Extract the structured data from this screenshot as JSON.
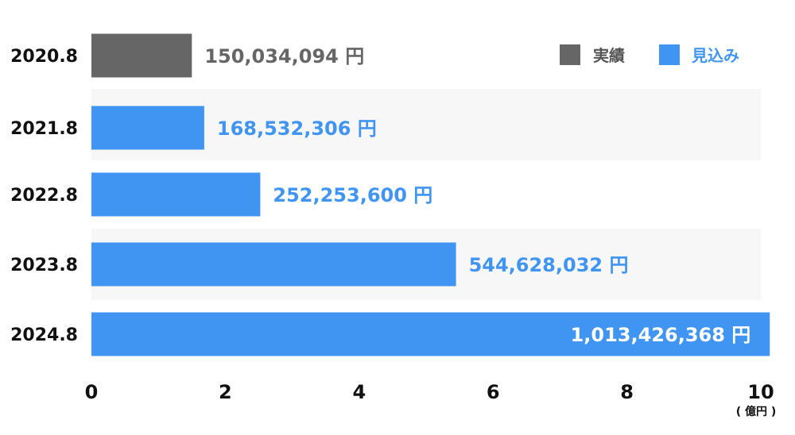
{
  "chart_data": {
    "type": "bar",
    "orientation": "horizontal",
    "categories": [
      "2020.8",
      "2021.8",
      "2022.8",
      "2023.8",
      "2024.8"
    ],
    "values": [
      1.50034094,
      1.68532306,
      2.522536,
      5.44628032,
      10.13426368
    ],
    "value_labels": [
      "150,034,094 円",
      "168,532,306 円",
      "252,253,600 円",
      "544,628,032 円",
      "1,013,426,368 円"
    ],
    "bar_kind": [
      "実績",
      "見込み",
      "見込み",
      "見込み",
      "見込み"
    ],
    "xlim": [
      0,
      10
    ],
    "xticks": [
      "0",
      "2",
      "4",
      "6",
      "8",
      "10"
    ],
    "x_unit": "( 億円 )",
    "legend": [
      {
        "label": "実績",
        "color": "#666666"
      },
      {
        "label": "見込み",
        "color": "#4195f2"
      }
    ],
    "legend_position": "top-right",
    "row_band_color": "#f7f7f7",
    "title": "",
    "xlabel": "",
    "ylabel": ""
  }
}
